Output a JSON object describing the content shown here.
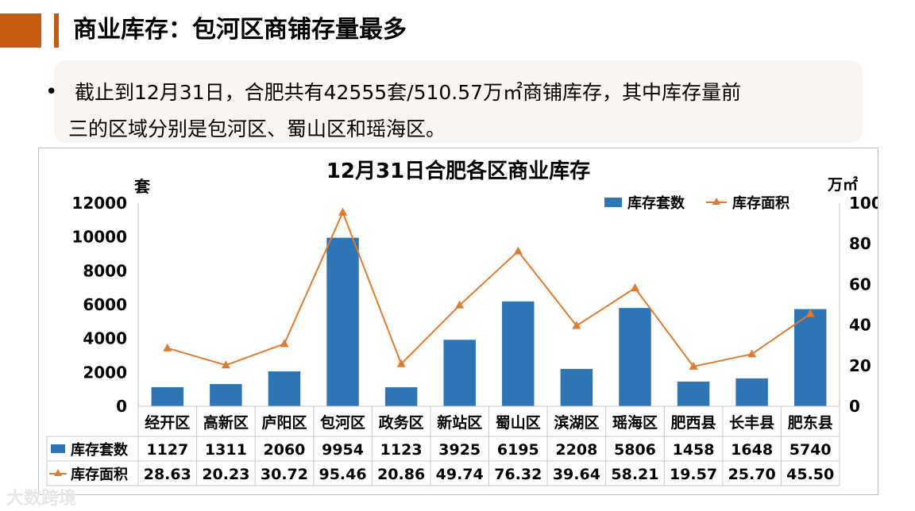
{
  "page": {
    "title": "商业库存：包河区商铺存量最多",
    "bullet": "•",
    "summary_line1": "截止到12月31日，合肥共有42555套/510.57万㎡商铺库存，其中库存量前",
    "summary_line2": "三的区域分别是包河区、蜀山区和瑶海区。",
    "watermark": "大数跨境",
    "colors": {
      "accent": "#c55a11",
      "bar": "#2e75b6",
      "line": "#e07b2e",
      "summary_bg": "#fbf5f2"
    }
  },
  "chart_data": {
    "type": "bar+line",
    "title": "12月31日合肥各区商业库存",
    "y_left_label": "套",
    "y_right_label": "万㎡",
    "y_left_ticks": [
      "12000",
      "10000",
      "8000",
      "6000",
      "4000",
      "2000",
      "0"
    ],
    "y_right_ticks": [
      "100",
      "80",
      "60",
      "40",
      "20",
      "0"
    ],
    "ylim_left": [
      0,
      12000
    ],
    "ylim_right": [
      0,
      100
    ],
    "legend_position": "top-right",
    "grid": false,
    "categories": [
      "经开区",
      "高新区",
      "庐阳区",
      "包河区",
      "政务区",
      "新站区",
      "蜀山区",
      "滨湖区",
      "瑶海区",
      "肥西县",
      "长丰县",
      "肥东县"
    ],
    "series": [
      {
        "name": "库存套数",
        "kind": "bar",
        "axis": "left",
        "values": [
          1127,
          1311,
          2060,
          9954,
          1123,
          3925,
          6195,
          2208,
          5806,
          1458,
          1648,
          5740
        ],
        "table_values": [
          "1127",
          "1311",
          "2060",
          "9954",
          "1123",
          "3925",
          "6195",
          "2208",
          "5806",
          "1458",
          "1648",
          "5740"
        ]
      },
      {
        "name": "库存面积",
        "kind": "line",
        "axis": "right",
        "values": [
          28.63,
          20.23,
          30.72,
          95.46,
          20.86,
          49.74,
          76.32,
          39.64,
          58.21,
          19.57,
          25.7,
          45.5
        ],
        "table_values": [
          "28.63",
          "20.23",
          "30.72",
          "95.46",
          "20.86",
          "49.74",
          "76.32",
          "39.64",
          "58.21",
          "19.57",
          "25.70",
          "45.50"
        ]
      }
    ]
  }
}
